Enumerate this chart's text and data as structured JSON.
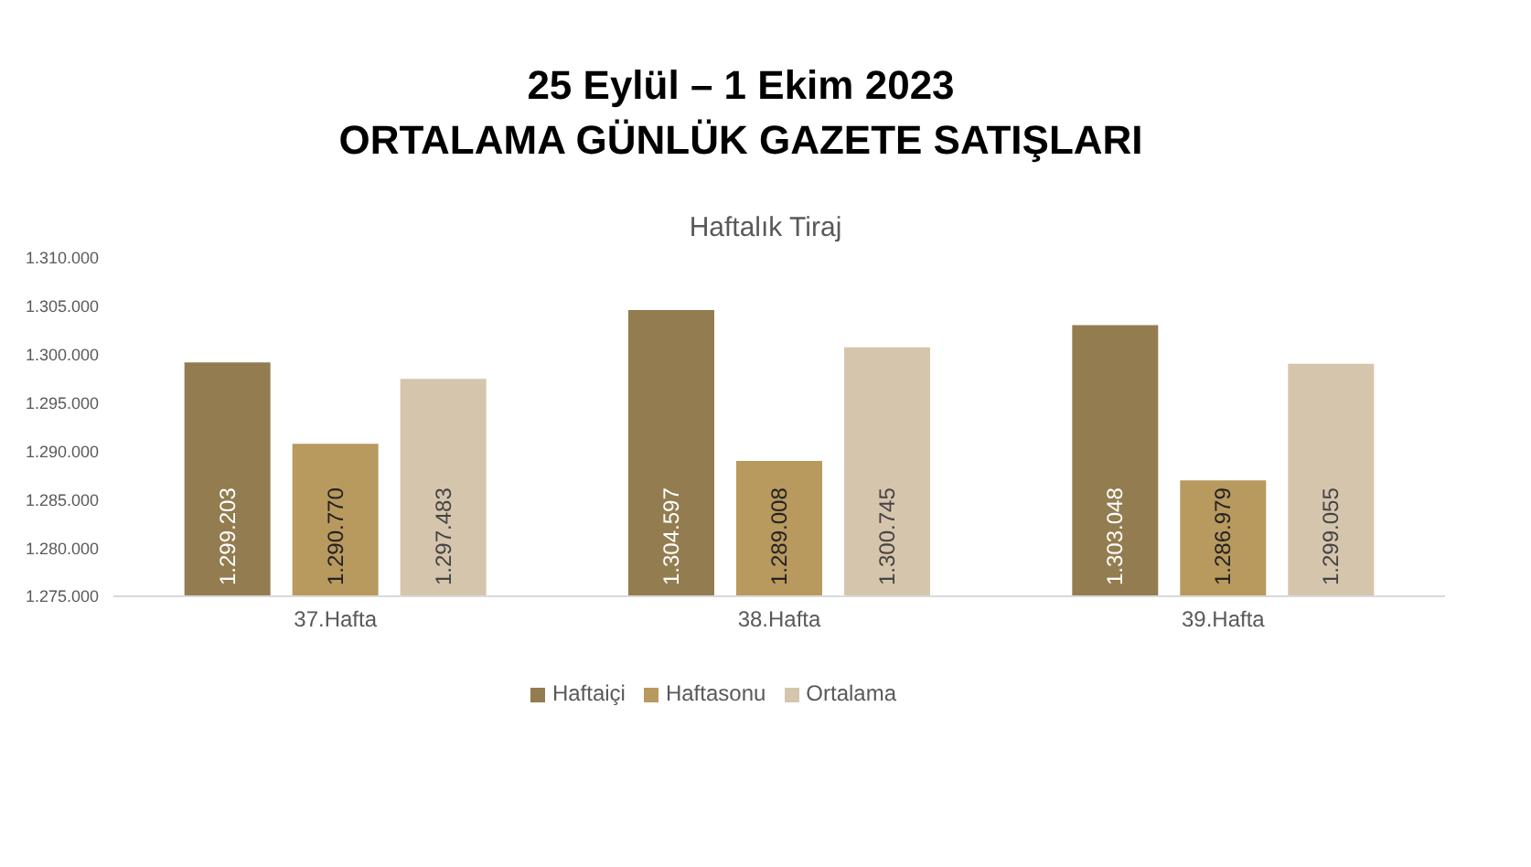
{
  "chart_data": {
    "type": "bar",
    "title": "25 Eylül  – 1 Ekim 2023",
    "subtitle": "ORTALAMA GÜNLÜK GAZETE SATIŞLARI",
    "annotations": [
      "Haftalık Tiraj"
    ],
    "categories": [
      "37.Hafta",
      "38.Hafta",
      "39.Hafta"
    ],
    "series": [
      {
        "name": "Haftaiçi",
        "color": "#937c4f",
        "values": [
          1299203,
          1304597,
          1303048
        ],
        "value_labels": [
          "1.299.203",
          "1.304.597",
          "1.303.048"
        ]
      },
      {
        "name": "Haftasonu",
        "color": "#b8995e",
        "values": [
          1290770,
          1289008,
          1286979
        ],
        "value_labels": [
          "1.290.770",
          "1.289.008",
          "1.286.979"
        ]
      },
      {
        "name": "Ortalama",
        "color": "#d6c5ad",
        "values": [
          1297483,
          1300745,
          1299055
        ],
        "value_labels": [
          "1.297.483",
          "1.300.745",
          "1.299.055"
        ]
      }
    ],
    "ylim": [
      1275000,
      1310000
    ],
    "yticks": [
      {
        "value": 1275000,
        "label": "1.275.000"
      },
      {
        "value": 1280000,
        "label": "1.280.000"
      },
      {
        "value": 1285000,
        "label": "1.285.000"
      },
      {
        "value": 1290000,
        "label": "1.290.000"
      },
      {
        "value": 1295000,
        "label": "1.295.000"
      },
      {
        "value": 1300000,
        "label": "1.300.000"
      },
      {
        "value": 1305000,
        "label": "1.305.000"
      },
      {
        "value": 1310000,
        "label": "1.310.000"
      }
    ],
    "grid": false,
    "legend": "bottom"
  }
}
